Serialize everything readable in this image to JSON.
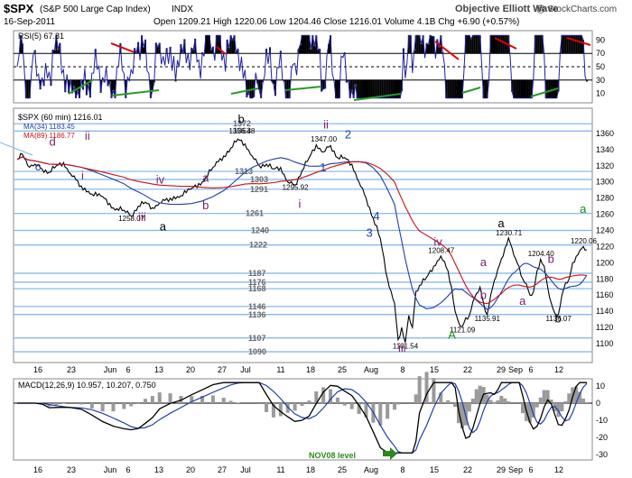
{
  "header": {
    "symbol": "$SPX",
    "name": "(S&P 500 Large Cap Index)",
    "exchange": "INDX",
    "date": "16-Sep-2011",
    "ohlc": "Open 1209.21  High 1220.06  Low 1204.46  Close 1216.01  Volume 4.1B  Chg +6.90 (+0.57%)",
    "watermark": "Objective Elliott Wave",
    "credit": "@ StockCharts.com"
  },
  "colors": {
    "rsi": "#2020a0",
    "price": "#000000",
    "ma34": "#1f3fa8",
    "ma89": "#cc1111",
    "hline": "#7fb3e6",
    "wave_purple": "#7a1f6e",
    "wave_blue": "#1f3fa8",
    "wave_green": "#1a8a1a",
    "trend_red": "#e00000",
    "trend_green": "#2a9a2a",
    "macd_hist": "#9a9a9a",
    "arrow_green": "#2a8a1a"
  },
  "chart_data": [
    {
      "type": "line",
      "panel": "RSI",
      "title": "RSI(5) 67.81",
      "ylim": [
        0,
        100
      ],
      "y_ticks": [
        10,
        30,
        50,
        70,
        90
      ],
      "reference_lines": [
        70,
        50,
        30
      ],
      "last_value": 67.81
    },
    {
      "type": "line",
      "panel": "Price",
      "title": "$SPX (60 min) 1216.01",
      "ylim": [
        1090,
        1380
      ],
      "y_ticks": [
        1100,
        1120,
        1140,
        1160,
        1180,
        1200,
        1220,
        1240,
        1260,
        1280,
        1300,
        1320,
        1340,
        1360
      ],
      "x_ticks": [
        "16",
        "23",
        "Jun",
        "6",
        "13",
        "20",
        "27",
        "Jul",
        "11",
        "18",
        "25",
        "Aug",
        "8",
        "15",
        "22",
        "29",
        "Sep",
        "6",
        "12"
      ],
      "series": [
        {
          "name": "$SPX (60 min) 1216.01",
          "points": [
            [
              0,
              1328
            ],
            [
              3,
              1334
            ],
            [
              6,
              1320
            ],
            [
              10,
              1322
            ],
            [
              14,
              1316
            ],
            [
              18,
              1312
            ],
            [
              22,
              1320
            ],
            [
              26,
              1324
            ],
            [
              30,
              1310
            ],
            [
              36,
              1295
            ],
            [
              42,
              1285
            ],
            [
              48,
              1282
            ],
            [
              54,
              1268
            ],
            [
              60,
              1265
            ],
            [
              64,
              1258
            ],
            [
              68,
              1270
            ],
            [
              72,
              1275
            ],
            [
              76,
              1268
            ],
            [
              80,
              1274
            ],
            [
              86,
              1280
            ],
            [
              92,
              1283
            ],
            [
              98,
              1292
            ],
            [
              104,
              1300
            ],
            [
              110,
              1318
            ],
            [
              116,
              1332
            ],
            [
              120,
              1342
            ],
            [
              124,
              1353
            ],
            [
              128,
              1347
            ],
            [
              132,
              1332
            ],
            [
              136,
              1320
            ],
            [
              140,
              1322
            ],
            [
              144,
              1316
            ],
            [
              148,
              1318
            ],
            [
              152,
              1300
            ],
            [
              156,
              1296
            ],
            [
              160,
              1314
            ],
            [
              164,
              1330
            ],
            [
              168,
              1346
            ],
            [
              172,
              1337
            ],
            [
              176,
              1345
            ],
            [
              180,
              1330
            ],
            [
              184,
              1330
            ],
            [
              188,
              1322
            ],
            [
              192,
              1300
            ],
            [
              196,
              1280
            ],
            [
              200,
              1255
            ],
            [
              204,
              1230
            ],
            [
              208,
              1180
            ],
            [
              212,
              1150
            ],
            [
              214,
              1105
            ],
            [
              216,
              1120
            ],
            [
              218,
              1101.54
            ],
            [
              220,
              1135
            ],
            [
              222,
              1120
            ],
            [
              224,
              1165
            ],
            [
              226,
              1172
            ],
            [
              230,
              1182
            ],
            [
              234,
              1196
            ],
            [
              238,
              1208.47
            ],
            [
              242,
              1190
            ],
            [
              244,
              1170
            ],
            [
              246,
              1140
            ],
            [
              248,
              1126
            ],
            [
              250,
              1121.09
            ],
            [
              252,
              1132
            ],
            [
              254,
              1135
            ],
            [
              256,
              1152
            ],
            [
              258,
              1162
            ],
            [
              260,
              1170
            ],
            [
              262,
              1150
            ],
            [
              264,
              1135.91
            ],
            [
              266,
              1160
            ],
            [
              268,
              1178
            ],
            [
              270,
              1192
            ],
            [
              272,
              1205
            ],
            [
              274,
              1218
            ],
            [
              276,
              1230.71
            ],
            [
              278,
              1218
            ],
            [
              280,
              1205
            ],
            [
              282,
              1195
            ],
            [
              284,
              1180
            ],
            [
              286,
              1174
            ],
            [
              288,
              1160
            ],
            [
              290,
              1164
            ],
            [
              292,
              1190
            ],
            [
              294,
              1204.4
            ],
            [
              296,
              1196
            ],
            [
              298,
              1170
            ],
            [
              300,
              1150
            ],
            [
              302,
              1138
            ],
            [
              304,
              1136.07
            ],
            [
              306,
              1160
            ],
            [
              308,
              1175
            ],
            [
              310,
              1180
            ],
            [
              312,
              1200
            ],
            [
              314,
              1208
            ],
            [
              316,
              1215
            ],
            [
              318,
              1220.06
            ],
            [
              320,
              1216.01
            ]
          ]
        },
        {
          "name": "MA(34) 1183.45",
          "last": 1183.45
        },
        {
          "name": "MA(89) 1186.77",
          "last": 1186.77
        }
      ],
      "right_axis_labels": [
        "1360",
        "1340",
        "1320",
        "1300",
        "1280",
        "1260",
        "1240",
        "1220",
        "1200",
        "1180",
        "1160",
        "1140",
        "1120",
        "1100"
      ],
      "level_lines": [
        1372,
        1363,
        1313,
        1303,
        1291,
        1261,
        1240,
        1222,
        1187,
        1176,
        1168,
        1146,
        1136,
        1107,
        1090
      ],
      "level_labels": [
        "1372",
        "1363",
        "1313",
        "1303",
        "1291",
        "1261",
        "1240",
        "1222",
        "1187",
        "1176",
        "1168",
        "1146",
        "1136",
        "1107",
        "1090"
      ],
      "price_annotations": [
        "1356.48",
        "1347.00",
        "1258.07",
        "1295.92",
        "1208.47",
        "1101.54",
        "1121.09",
        "1135.91",
        "1230.71",
        "1204.40",
        "1136.07",
        "1220.06"
      ],
      "wave_labels": [
        {
          "text": "c",
          "color": "blue"
        },
        {
          "text": "d",
          "color": "purple"
        },
        {
          "text": "ii",
          "color": "purple"
        },
        {
          "text": "i",
          "color": "purple"
        },
        {
          "text": "iv",
          "color": "purple"
        },
        {
          "text": "iii",
          "color": "purple"
        },
        {
          "text": "a",
          "color": "purple"
        },
        {
          "text": "b",
          "color": "purple"
        },
        {
          "text": "a",
          "color": "black"
        },
        {
          "text": "b",
          "color": "black"
        },
        {
          "text": "ii",
          "color": "purple"
        },
        {
          "text": "2",
          "color": "blue"
        },
        {
          "text": "1",
          "color": "blue"
        },
        {
          "text": "i",
          "color": "purple"
        },
        {
          "text": "4",
          "color": "blue"
        },
        {
          "text": "3",
          "color": "blue"
        },
        {
          "text": "iii",
          "color": "purple"
        },
        {
          "text": "iv",
          "color": "purple"
        },
        {
          "text": "A",
          "color": "green"
        },
        {
          "text": "a",
          "color": "purple"
        },
        {
          "text": "b",
          "color": "purple"
        },
        {
          "text": "a",
          "color": "black"
        },
        {
          "text": "a",
          "color": "purple"
        },
        {
          "text": "b",
          "color": "purple"
        },
        {
          "text": "b",
          "color": "black"
        },
        {
          "text": "a",
          "color": "green"
        }
      ]
    },
    {
      "type": "line",
      "panel": "MACD",
      "title": "MACD(12,26,9) 10.957, 10.207, 0.750",
      "ylim": [
        -30,
        10
      ],
      "y_ticks": [
        10,
        0,
        -10,
        -20,
        -30
      ],
      "annotation": "NOV08 level"
    }
  ]
}
